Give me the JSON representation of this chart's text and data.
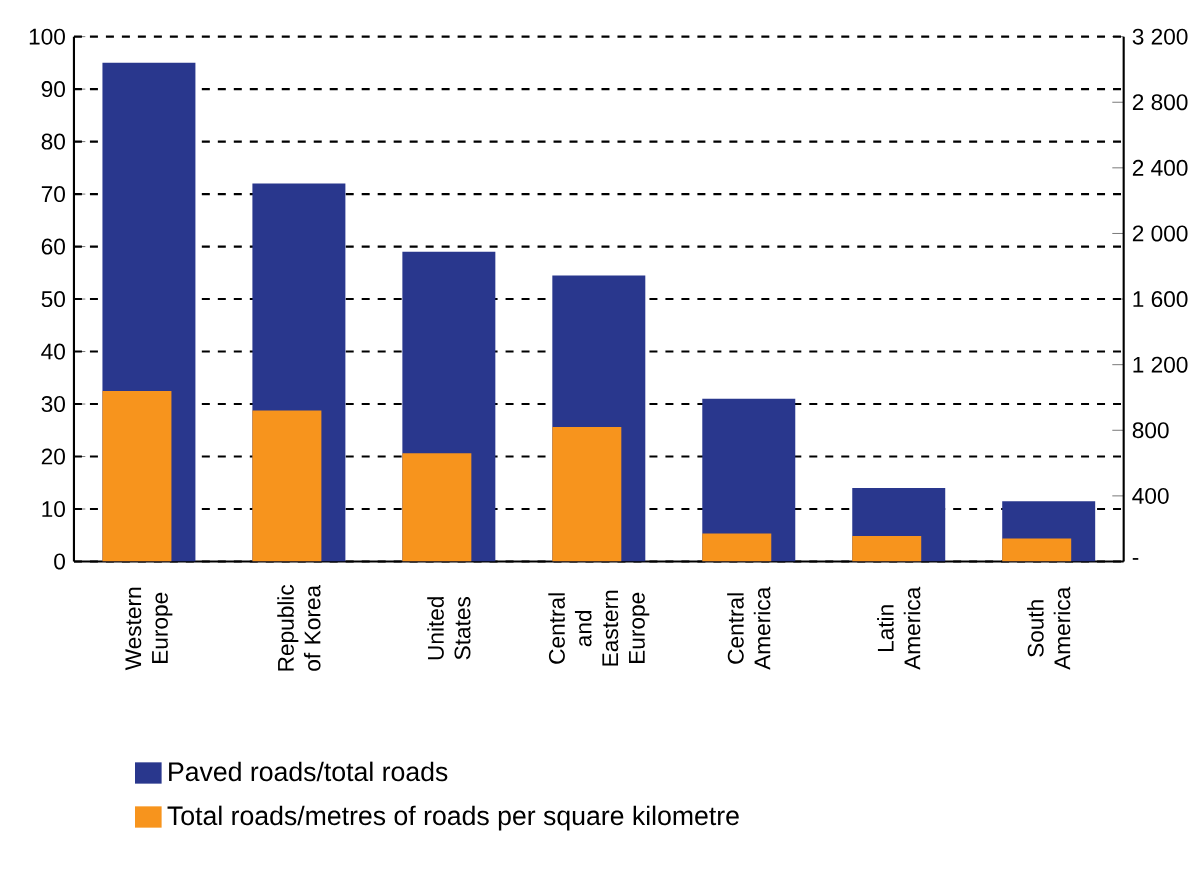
{
  "chart_data": {
    "type": "bar",
    "categories": [
      "Western Europe",
      "Republic of Korea",
      "United States",
      "Central and Eastern Europe",
      "Central America",
      "Latin America",
      "South America"
    ],
    "series": [
      {
        "name": "Paved roads/total roads",
        "color": "#29378d",
        "values": [
          95,
          72,
          59,
          54.5,
          31,
          14,
          11.5
        ]
      },
      {
        "name": "Total roads/metres of roads per square kilometre",
        "color": "#f7941d",
        "axis": "y2",
        "values": [
          1040,
          920,
          660,
          820,
          170,
          155,
          140
        ]
      }
    ],
    "ylim": [
      0,
      100
    ],
    "yticks": [
      0,
      10,
      20,
      30,
      40,
      50,
      60,
      70,
      80,
      90,
      100
    ],
    "y2lim": [
      0,
      3200
    ],
    "y2ticks": [
      {
        "value": 0,
        "label": "-"
      },
      400,
      800,
      {
        "value": 1200,
        "label": "1 200"
      },
      {
        "value": 1600,
        "label": "1 600"
      },
      {
        "value": 2000,
        "label": "2 000"
      },
      {
        "value": 2400,
        "label": "2 400"
      },
      {
        "value": 2800,
        "label": "2 800"
      },
      {
        "value": 3200,
        "label": "3 200"
      }
    ],
    "grid": "y",
    "legend": "bottom"
  }
}
